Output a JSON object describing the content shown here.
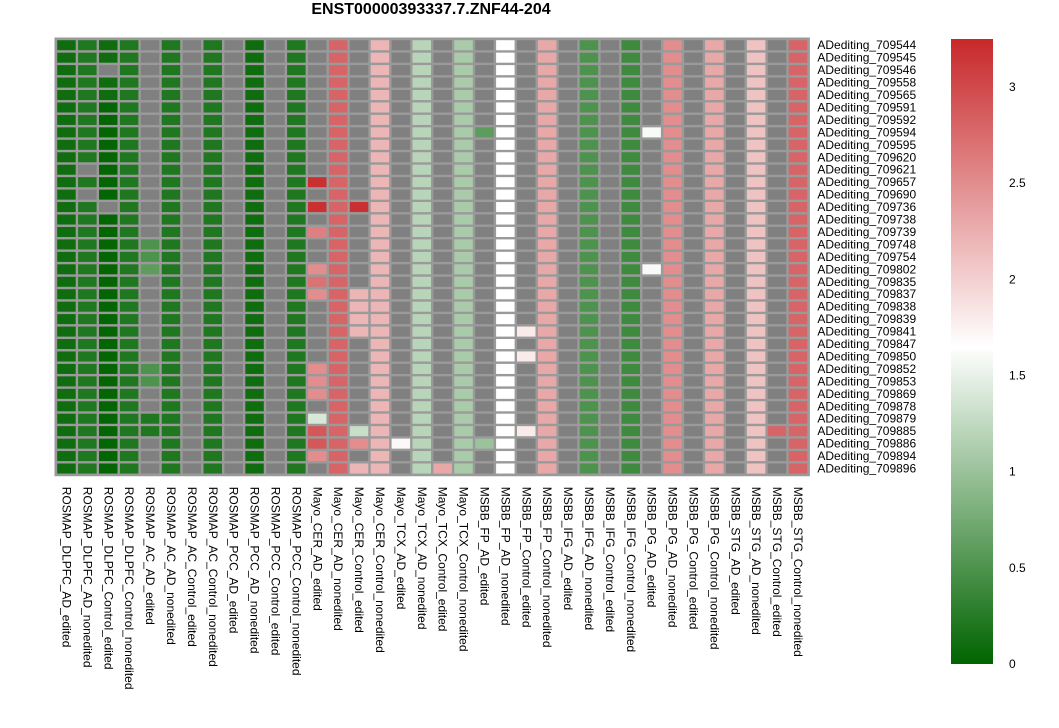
{
  "chart_data": {
    "type": "heatmap",
    "title": "ENST00000393337.7.ZNF44-204",
    "columns": [
      "ROSMAP_DLPFC_AD_edited",
      "ROSMAP_DLPFC_AD_nonedited",
      "ROSMAP_DLPFC_Control_edited",
      "ROSMAP_DLPFC_Control_nonedited",
      "ROSMAP_AC_AD_edited",
      "ROSMAP_AC_AD_nonedited",
      "ROSMAP_AC_Control_edited",
      "ROSMAP_AC_Control_nonedited",
      "ROSMAP_PCC_AD_edited",
      "ROSMAP_PCC_AD_nonedited",
      "ROSMAP_PCC_Control_edited",
      "ROSMAP_PCC_Control_nonedited",
      "Mayo_CER_AD_edited",
      "Mayo_CER_AD_nonedited",
      "Mayo_CER_Control_edited",
      "Mayo_CER_Control_nonedited",
      "Mayo_TCX_AD_edited",
      "Mayo_TCX_AD_nonedited",
      "Mayo_TCX_Control_edited",
      "Mayo_TCX_Control_nonedited",
      "MSBB_FP_AD_edited",
      "MSBB_FP_AD_nonedited",
      "MSBB_FP_Control_edited",
      "MSBB_FP_Control_nonedited",
      "MSBB_IFG_AD_edited",
      "MSBB_IFG_AD_nonedited",
      "MSBB_IFG_Control_edited",
      "MSBB_IFG_Control_nonedited",
      "MSBB_PG_AD_edited",
      "MSBB_PG_AD_nonedited",
      "MSBB_PG_Control_edited",
      "MSBB_PG_Control_nonedited",
      "MSBB_STG_AD_edited",
      "MSBB_STG_AD_nonedited",
      "MSBB_STG_Control_edited",
      "MSBB_STG_Control_nonedited"
    ],
    "rows": [
      "ADediting_709544",
      "ADediting_709545",
      "ADediting_709546",
      "ADediting_709558",
      "ADediting_709565",
      "ADediting_709591",
      "ADediting_709592",
      "ADediting_709594",
      "ADediting_709595",
      "ADediting_709620",
      "ADediting_709621",
      "ADediting_709657",
      "ADediting_709690",
      "ADediting_709736",
      "ADediting_709738",
      "ADediting_709739",
      "ADediting_709748",
      "ADediting_709754",
      "ADediting_709802",
      "ADediting_709835",
      "ADediting_709837",
      "ADediting_709838",
      "ADediting_709839",
      "ADediting_709841",
      "ADediting_709847",
      "ADediting_709850",
      "ADediting_709852",
      "ADediting_709853",
      "ADediting_709869",
      "ADediting_709878",
      "ADediting_709879",
      "ADediting_709885",
      "ADediting_709886",
      "ADediting_709894",
      "ADediting_709896"
    ],
    "column_defaults": [
      0.1,
      0.2,
      0.1,
      0.2,
      null,
      0.2,
      null,
      0.2,
      null,
      0.1,
      null,
      0.2,
      null,
      2.8,
      null,
      2.2,
      null,
      1.2,
      null,
      1.1,
      null,
      1.65,
      null,
      2.3,
      null,
      0.5,
      null,
      0.4,
      null,
      2.5,
      null,
      2.3,
      null,
      2.1,
      null,
      2.8
    ],
    "overrides": [
      {
        "r": 0,
        "c": 4,
        "v": null
      },
      {
        "r": 2,
        "c": 2,
        "v": null
      },
      {
        "r": 5,
        "c": 2,
        "v": 0.02
      },
      {
        "r": 6,
        "c": 2,
        "v": 0.02
      },
      {
        "r": 7,
        "c": 2,
        "v": 0.02
      },
      {
        "r": 8,
        "c": 2,
        "v": 0.02
      },
      {
        "r": 9,
        "c": 2,
        "v": 0.02
      },
      {
        "r": 7,
        "c": 20,
        "v": 0.6
      },
      {
        "r": 7,
        "c": 28,
        "v": 1.6
      },
      {
        "r": 10,
        "c": 1,
        "v": null
      },
      {
        "r": 10,
        "c": 2,
        "v": 0.02
      },
      {
        "r": 11,
        "c": 12,
        "v": 3.2
      },
      {
        "r": 11,
        "c": 2,
        "v": 0.02
      },
      {
        "r": 12,
        "c": 1,
        "v": null
      },
      {
        "r": 12,
        "c": 2,
        "v": 0.02
      },
      {
        "r": 13,
        "c": 12,
        "v": 3.2
      },
      {
        "r": 13,
        "c": 14,
        "v": 3.2
      },
      {
        "r": 13,
        "c": 2,
        "v": null
      },
      {
        "r": 14,
        "c": 2,
        "v": 0.02
      },
      {
        "r": 15,
        "c": 12,
        "v": 2.6
      },
      {
        "r": 15,
        "c": 2,
        "v": 0.02
      },
      {
        "r": 16,
        "c": 4,
        "v": 0.5
      },
      {
        "r": 16,
        "c": 2,
        "v": 0.02
      },
      {
        "r": 17,
        "c": 4,
        "v": 0.5
      },
      {
        "r": 17,
        "c": 2,
        "v": 0.02
      },
      {
        "r": 18,
        "c": 4,
        "v": 0.6
      },
      {
        "r": 18,
        "c": 12,
        "v": 2.5
      },
      {
        "r": 18,
        "c": 28,
        "v": 1.6
      },
      {
        "r": 18,
        "c": 2,
        "v": 0.02
      },
      {
        "r": 19,
        "c": 12,
        "v": 2.7
      },
      {
        "r": 19,
        "c": 2,
        "v": 0.02
      },
      {
        "r": 20,
        "c": 12,
        "v": 2.5
      },
      {
        "r": 20,
        "c": 14,
        "v": 2.2
      },
      {
        "r": 20,
        "c": 2,
        "v": 0.02
      },
      {
        "r": 21,
        "c": 14,
        "v": 2.2
      },
      {
        "r": 21,
        "c": 2,
        "v": 0.02
      },
      {
        "r": 22,
        "c": 14,
        "v": 2.2
      },
      {
        "r": 22,
        "c": 2,
        "v": 0.02
      },
      {
        "r": 23,
        "c": 14,
        "v": 2.2
      },
      {
        "r": 23,
        "c": 22,
        "v": 1.8
      },
      {
        "r": 23,
        "c": 2,
        "v": 0.02
      },
      {
        "r": 24,
        "c": 2,
        "v": 0.02
      },
      {
        "r": 25,
        "c": 22,
        "v": 1.8
      },
      {
        "r": 25,
        "c": 2,
        "v": 0.02
      },
      {
        "r": 26,
        "c": 4,
        "v": 0.5
      },
      {
        "r": 26,
        "c": 12,
        "v": 2.5
      },
      {
        "r": 26,
        "c": 2,
        "v": 0.02
      },
      {
        "r": 27,
        "c": 4,
        "v": 0.5
      },
      {
        "r": 27,
        "c": 12,
        "v": 2.5
      },
      {
        "r": 27,
        "c": 2,
        "v": 0.02
      },
      {
        "r": 28,
        "c": 12,
        "v": 2.5
      },
      {
        "r": 28,
        "c": 2,
        "v": 0.02
      },
      {
        "r": 29,
        "c": 2,
        "v": 0.02
      },
      {
        "r": 30,
        "c": 4,
        "v": 0.2
      },
      {
        "r": 30,
        "c": 12,
        "v": 1.4
      },
      {
        "r": 30,
        "c": 2,
        "v": 0.02
      },
      {
        "r": 31,
        "c": 4,
        "v": 0.2
      },
      {
        "r": 31,
        "c": 12,
        "v": 2.9
      },
      {
        "r": 31,
        "c": 14,
        "v": 1.3
      },
      {
        "r": 31,
        "c": 22,
        "v": 1.8
      },
      {
        "r": 31,
        "c": 34,
        "v": 2.8
      },
      {
        "r": 31,
        "c": 2,
        "v": 0.02
      },
      {
        "r": 32,
        "c": 12,
        "v": 2.9
      },
      {
        "r": 32,
        "c": 14,
        "v": 2.5
      },
      {
        "r": 32,
        "c": 16,
        "v": 1.7
      },
      {
        "r": 32,
        "c": 20,
        "v": 1.0
      },
      {
        "r": 32,
        "c": 2,
        "v": 0.02
      },
      {
        "r": 33,
        "c": 12,
        "v": 2.5
      },
      {
        "r": 33,
        "c": 2,
        "v": 0.02
      },
      {
        "r": 34,
        "c": 14,
        "v": 2.2
      },
      {
        "r": 34,
        "c": 18,
        "v": 2.3
      },
      {
        "r": 34,
        "c": 22,
        "v": null
      },
      {
        "r": 34,
        "c": 2,
        "v": 0.02
      }
    ],
    "legend": {
      "min": 0,
      "max": 3.25,
      "ticks": [
        0,
        0.5,
        1,
        1.5,
        2,
        2.5,
        3
      ],
      "low_color": "#006400",
      "mid_color": "#ffffff",
      "mid_value": 1.65,
      "high_color": "#c8282a"
    },
    "na_color": "#808080"
  }
}
